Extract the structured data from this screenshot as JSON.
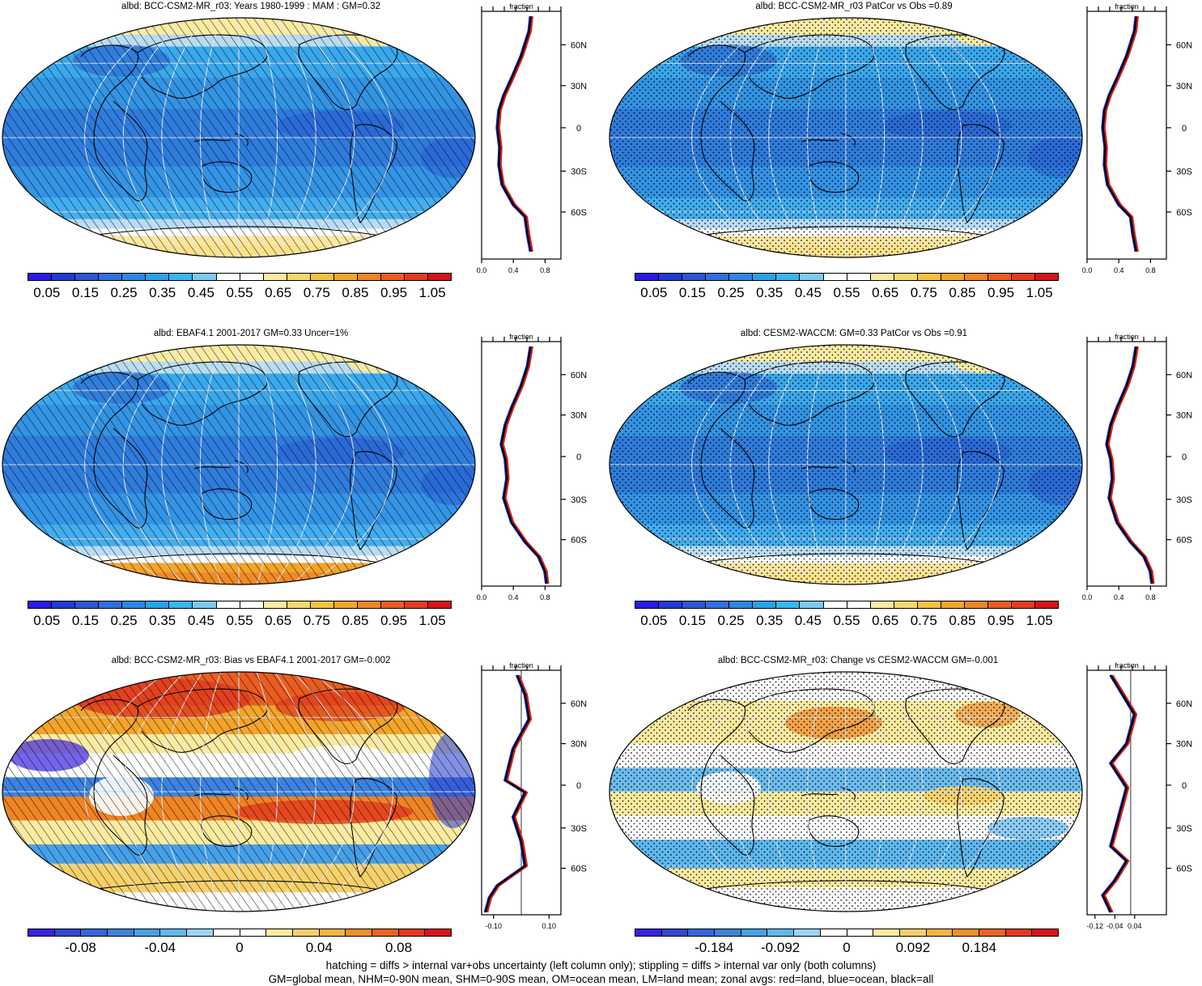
{
  "colors": {
    "abs_scale": [
      "#2a1ae6",
      "#1f3ccf",
      "#2e56d6",
      "#3070dc",
      "#2f86e2",
      "#2aa0ea",
      "#3bb4f0",
      "#7ccaf2",
      "#ffffff",
      "#ffffff",
      "#fbeba0",
      "#f6d86a",
      "#f5c040",
      "#f3a52a",
      "#ef8424",
      "#ea5c20",
      "#e23a1e",
      "#d4141a"
    ],
    "diff_scale": [
      "#3a22e0",
      "#3048d2",
      "#3566d8",
      "#3d82de",
      "#46a0e8",
      "#5eb8ee",
      "#9ad4f4",
      "#ffffff",
      "#ffffff",
      "#fbeba0",
      "#f6d16a",
      "#f3b440",
      "#ee8e2c",
      "#ea6424",
      "#e03a1e",
      "#d4141a"
    ],
    "land_line": "#d62020",
    "ocean_line": "#1020e0",
    "all_line": "#000000"
  },
  "abs_colorbar_labels": [
    "0.05",
    "0.15",
    "0.25",
    "0.35",
    "0.45",
    "0.55",
    "0.65",
    "0.75",
    "0.85",
    "0.95",
    "1.05"
  ],
  "bias_colorbar_labels": [
    "-0.08",
    "-0.04",
    "0",
    "0.04",
    "0.08"
  ],
  "change_colorbar_labels": [
    "-0.184",
    "-0.092",
    "0",
    "0.092",
    "0.184"
  ],
  "panels": [
    {
      "id": "p1",
      "title": "albd: BCC-CSM2-MR_r03: Years 1980-1999 : MAM : GM=0.32",
      "kind": "abs",
      "pattern": "hatch",
      "zonal_xticks": [
        "0.0",
        "0.4",
        "0.8"
      ],
      "zonal_top": "fraction",
      "lat_labels": [
        "60N",
        "30N",
        "0",
        "30S",
        "60S"
      ]
    },
    {
      "id": "p2",
      "title": "albd: BCC-CSM2-MR_r03 PatCor vs Obs =0.89",
      "kind": "abs",
      "pattern": "stipple",
      "zonal_xticks": [
        "0.0",
        "0.4",
        "0.8"
      ],
      "zonal_top": "fraction",
      "lat_labels": [
        "60N",
        "30N",
        "0",
        "30S",
        "60S"
      ]
    },
    {
      "id": "p3",
      "title": "albd: EBAF4.1 2001-2017 GM=0.33 Uncer=1%",
      "kind": "obs",
      "pattern": "hatch",
      "zonal_xticks": [
        "0.0",
        "0.4",
        "0.8"
      ],
      "zonal_top": "fraction",
      "lat_labels": [
        "60N",
        "30N",
        "0",
        "30S",
        "60S"
      ]
    },
    {
      "id": "p4",
      "title": "albd: CESM2-WACCM: GM=0.33 PatCor vs Obs =0.91",
      "kind": "abs",
      "pattern": "stipple",
      "zonal_xticks": [
        "0.0",
        "0.4",
        "0.8"
      ],
      "zonal_top": "fraction",
      "lat_labels": [
        "60N",
        "30N",
        "0",
        "30S",
        "60S"
      ]
    },
    {
      "id": "p5",
      "title": "albd: BCC-CSM2-MR_r03: Bias vs EBAF4.1 2001-2017 GM=-0.002",
      "kind": "bias",
      "pattern": "hatch",
      "zonal_xticks": [
        "-0.10",
        "0.10"
      ],
      "zonal_top": "fraction",
      "lat_labels": [
        "60N",
        "30N",
        "0",
        "30S",
        "60S"
      ]
    },
    {
      "id": "p6",
      "title": "albd: BCC-CSM2-MR_r03: Change vs CESM2-WACCM GM=-0.001",
      "kind": "change",
      "pattern": "stipple",
      "zonal_xticks": [
        "-0.12",
        "-0.04",
        "0.04"
      ],
      "zonal_top": "fraction",
      "lat_labels": [
        "60N",
        "30N",
        "0",
        "30S",
        "60S"
      ]
    }
  ],
  "footer": {
    "line1": "hatching = diffs > internal var+obs uncertainty (left column only); stippling = diffs > internal var only (both columns)",
    "line2": "GM=global mean, NHM=0-90N mean, SHM=0-90S mean, OM=ocean mean, LM=land mean; zonal avgs: red=land, blue=ocean, black=all"
  }
}
